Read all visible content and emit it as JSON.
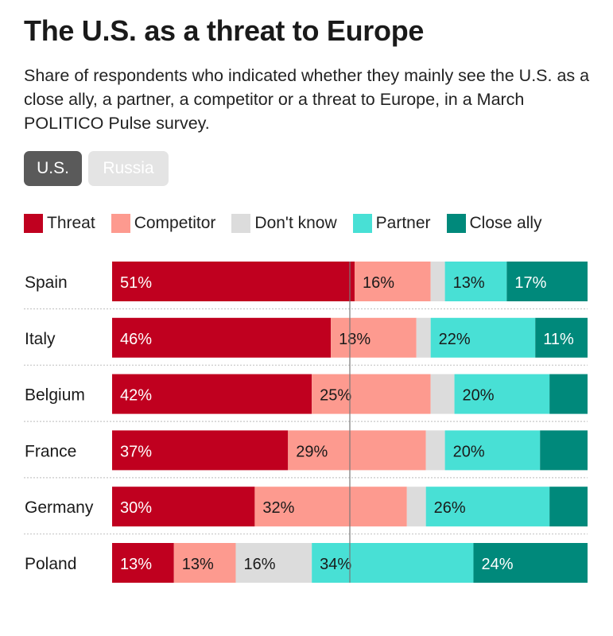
{
  "header": {
    "title": "The U.S. as a threat to Europe",
    "subtitle": "Share of respondents who indicated whether they mainly see the U.S. as a close ally, a partner, a competitor or a threat to Europe, in a March POLITICO Pulse survey."
  },
  "toggles": [
    {
      "label": "U.S.",
      "active": true
    },
    {
      "label": "Russia",
      "active": false
    }
  ],
  "chart_data": {
    "type": "bar",
    "stacked": true,
    "orientation": "horizontal",
    "xlim": [
      0,
      100
    ],
    "legend_placement": "top",
    "categories": [
      "Spain",
      "Italy",
      "Belgium",
      "France",
      "Germany",
      "Poland"
    ],
    "series": [
      {
        "name": "Threat",
        "color": "#c0001f",
        "label_color": "#ffffff",
        "values": [
          51,
          46,
          42,
          37,
          30,
          13
        ],
        "labels": [
          "51%",
          "46%",
          "42%",
          "37%",
          "30%",
          "13%"
        ]
      },
      {
        "name": "Competitor",
        "color": "#fd9a8f",
        "label_color": "#1a1a1a",
        "values": [
          16,
          18,
          25,
          29,
          32,
          13
        ],
        "labels": [
          "16%",
          "18%",
          "25%",
          "29%",
          "32%",
          "13%"
        ]
      },
      {
        "name": "Don't know",
        "color": "#dcdcdc",
        "label_color": "#1a1a1a",
        "values": [
          3,
          3,
          5,
          4,
          4,
          16
        ],
        "labels": [
          "",
          "",
          "",
          "",
          "",
          "16%"
        ]
      },
      {
        "name": "Partner",
        "color": "#48e0d5",
        "label_color": "#1a1a1a",
        "values": [
          13,
          22,
          20,
          20,
          26,
          34
        ],
        "labels": [
          "13%",
          "22%",
          "20%",
          "20%",
          "26%",
          "34%"
        ]
      },
      {
        "name": "Close ally",
        "color": "#00897b",
        "label_color": "#ffffff",
        "values": [
          17,
          11,
          8,
          10,
          8,
          24
        ],
        "labels": [
          "17%",
          "11%",
          "",
          "",
          "",
          "24%"
        ]
      }
    ],
    "reference_line": 50
  }
}
